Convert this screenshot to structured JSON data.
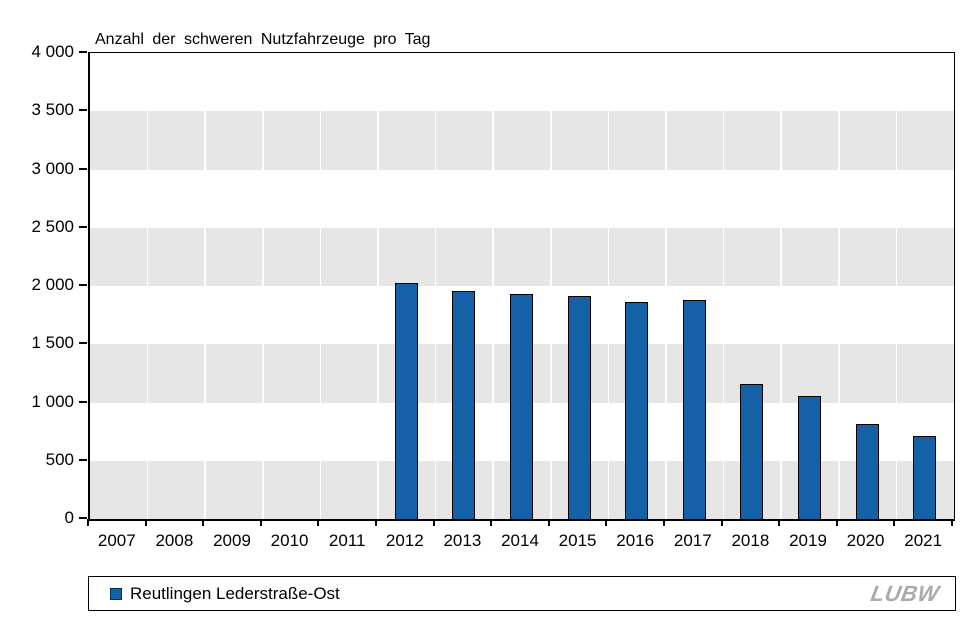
{
  "title": "Anzahl der schweren Nutzfahrzeuge pro Tag",
  "legend": {
    "label": "Reutlingen Lederstraße-Ost",
    "marker_color": "#1561a8",
    "marker_border_color": "#062f66"
  },
  "logo": {
    "text": "LUBW",
    "color": "#ababab"
  },
  "colors": {
    "bar_fill": "#1561a8",
    "bar_border": "#000000",
    "band_gray": "#e6e6e6",
    "background": "#ffffff",
    "axis": "#000000"
  },
  "chart_data": {
    "type": "bar",
    "title": "Anzahl der schweren Nutzfahrzeuge pro Tag",
    "series_name": "Reutlingen Lederstraße-Ost",
    "categories": [
      "2007",
      "2008",
      "2009",
      "2010",
      "2011",
      "2012",
      "2013",
      "2014",
      "2015",
      "2016",
      "2017",
      "2018",
      "2019",
      "2020",
      "2021"
    ],
    "values": [
      null,
      null,
      null,
      null,
      null,
      2030,
      1960,
      1940,
      1920,
      1870,
      1880,
      1160,
      1060,
      820,
      720
    ],
    "xlabel": "",
    "ylabel": "Anzahl der schweren Nutzfahrzeuge pro Tag",
    "ylim": [
      0,
      4000
    ],
    "ytick_step": 500,
    "ytick_labels": [
      "0",
      "500",
      "1 000",
      "1 500",
      "2 000",
      "2 500",
      "3 000",
      "3 500",
      "4 000"
    ],
    "grid": "alternating horizontal gray bands (3500-3000, 2500-2000, 1500-1000, 500-0) with white vertical category separators",
    "legend_position": "bottom",
    "bar_color": "#1561a8"
  }
}
